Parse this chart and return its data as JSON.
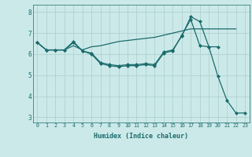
{
  "xlabel": "Humidex (Indice chaleur)",
  "bg_color": "#cce9e9",
  "grid_color": "#b0d0d0",
  "line_color": "#1a6b6b",
  "xlim_min": -0.5,
  "xlim_max": 23.5,
  "ylim_min": 2.75,
  "ylim_max": 8.35,
  "xticks": [
    0,
    1,
    2,
    3,
    4,
    5,
    6,
    7,
    8,
    9,
    10,
    11,
    12,
    13,
    14,
    15,
    16,
    17,
    18,
    19,
    20,
    21,
    22,
    23
  ],
  "yticks": [
    3,
    4,
    5,
    6,
    7,
    8
  ],
  "curve1_x": [
    0,
    1,
    2,
    3,
    4,
    5,
    6,
    7,
    8,
    9,
    10,
    11,
    12,
    13,
    14,
    15,
    16,
    17,
    18,
    19,
    20,
    21,
    22,
    23
  ],
  "curve1_y": [
    6.55,
    6.2,
    6.2,
    6.2,
    6.55,
    6.15,
    6.0,
    5.55,
    5.45,
    5.4,
    5.45,
    5.45,
    5.5,
    5.45,
    6.05,
    6.15,
    6.9,
    7.65,
    6.4,
    6.35,
    4.95,
    3.8,
    3.2,
    3.2
  ],
  "curve2_x": [
    0,
    1,
    2,
    3,
    4,
    5,
    6,
    7,
    8,
    9,
    10,
    11,
    12,
    13,
    14,
    15,
    16,
    17,
    18,
    19,
    20,
    21,
    22
  ],
  "curve2_y": [
    6.55,
    6.2,
    6.2,
    6.2,
    6.4,
    6.2,
    6.35,
    6.4,
    6.5,
    6.6,
    6.65,
    6.7,
    6.75,
    6.8,
    6.9,
    7.0,
    7.1,
    7.2,
    7.2,
    7.2,
    7.2,
    7.2,
    7.2
  ],
  "curve3_x": [
    0,
    1,
    2,
    3,
    4,
    5,
    6,
    7,
    8,
    9,
    10,
    11,
    12,
    13,
    14,
    15,
    16,
    17,
    18,
    19,
    20
  ],
  "curve3_y": [
    6.55,
    6.2,
    6.2,
    6.2,
    6.6,
    6.15,
    6.05,
    5.6,
    5.5,
    5.45,
    5.5,
    5.5,
    5.55,
    5.5,
    6.1,
    6.2,
    6.85,
    7.78,
    7.55,
    6.35,
    6.35
  ]
}
